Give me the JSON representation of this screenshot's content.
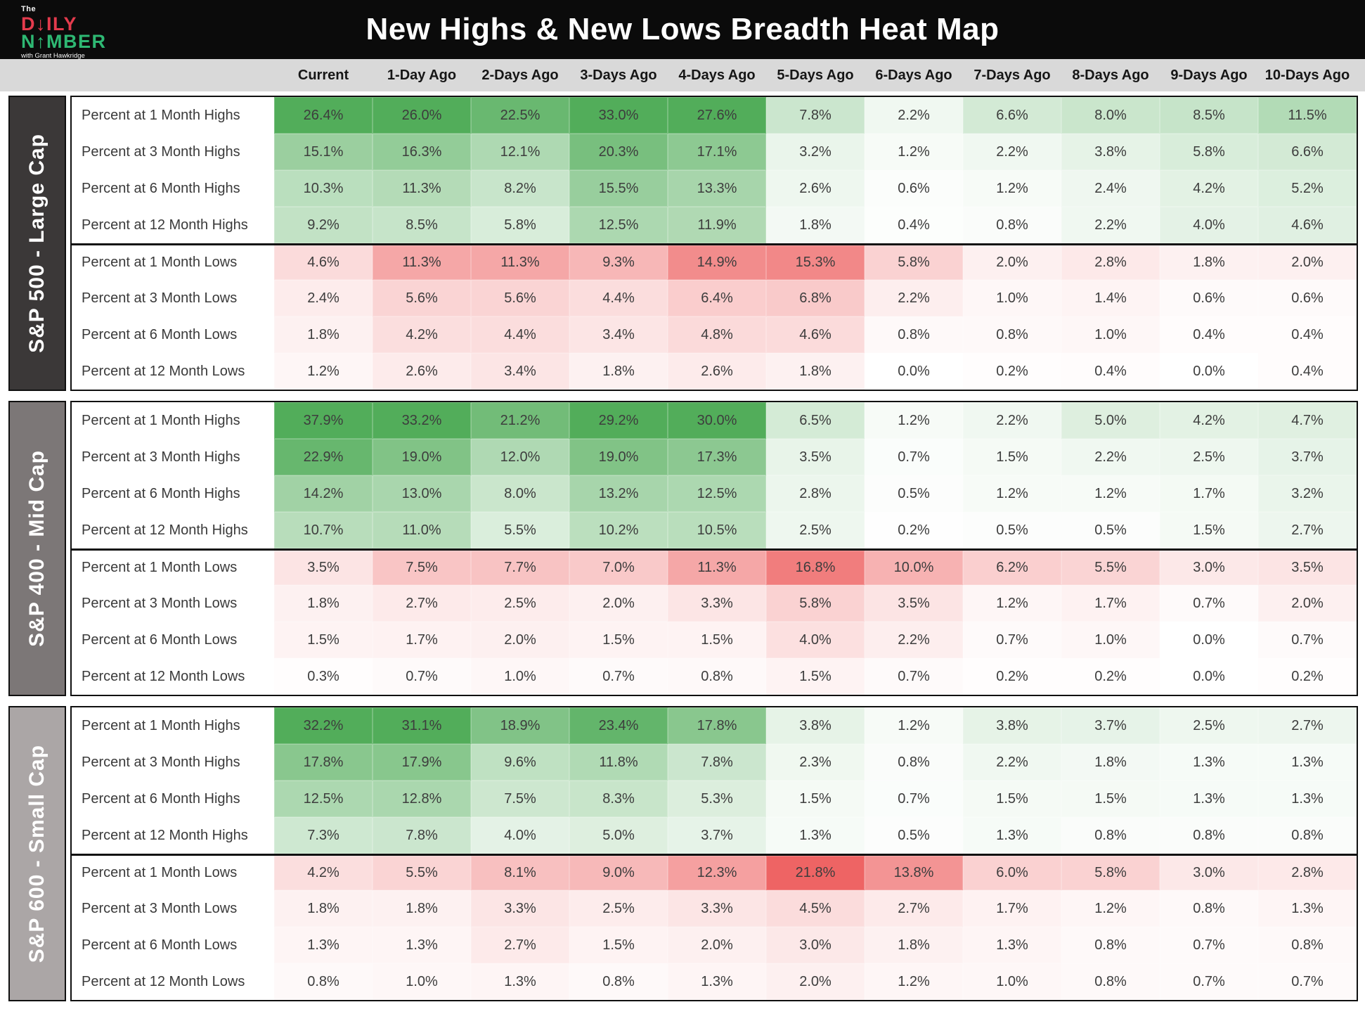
{
  "header": {
    "logo": {
      "line1": "The",
      "brand_top": "DAILY",
      "brand_bottom": "NUMBER",
      "tagline": "with Grant Hawkridge",
      "brand_top_color": "#e43b4d",
      "brand_bottom_color": "#2eb873"
    },
    "title": "New Highs & New Lows Breadth Heat Map"
  },
  "colors": {
    "header_bg": "#0b0b0b",
    "column_band_bg": "#d9d9d9",
    "high_max": "#52ad5a",
    "low_max": "#ee6464",
    "neutral": "#ffffff",
    "sidebar_sp500": "#3b3838",
    "sidebar_sp400": "#7c7777",
    "sidebar_sp600": "#aba6a6"
  },
  "chart_data": {
    "type": "heatmap",
    "title": "New Highs & New Lows Breadth Heat Map",
    "legend_position": "none",
    "grid": false,
    "value_format": "percent_one_decimal",
    "color_scale": {
      "highs": {
        "min": 0,
        "max": 26,
        "from": "#ffffff",
        "to": "#52ad5a"
      },
      "lows": {
        "min": 0,
        "max": 20,
        "from": "#ffffff",
        "to": "#ee6464"
      }
    },
    "columns": [
      "Current",
      "1-Day Ago",
      "2-Days Ago",
      "3-Days Ago",
      "4-Days Ago",
      "5-Days Ago",
      "6-Days Ago",
      "7-Days Ago",
      "8-Days Ago",
      "9-Days Ago",
      "10-Days Ago"
    ],
    "sections": [
      {
        "name": "S&P 500 - Large Cap",
        "sidebar_color": "#3b3838",
        "rows": [
          {
            "label": "Percent at 1 Month Highs",
            "kind": "high",
            "values": [
              26.4,
              26.0,
              22.5,
              33.0,
              27.6,
              7.8,
              2.2,
              6.6,
              8.0,
              8.5,
              11.5
            ]
          },
          {
            "label": "Percent at 3 Month Highs",
            "kind": "high",
            "values": [
              15.1,
              16.3,
              12.1,
              20.3,
              17.1,
              3.2,
              1.2,
              2.2,
              3.8,
              5.8,
              6.6
            ]
          },
          {
            "label": "Percent at 6 Month Highs",
            "kind": "high",
            "values": [
              10.3,
              11.3,
              8.2,
              15.5,
              13.3,
              2.6,
              0.6,
              1.2,
              2.4,
              4.2,
              5.2
            ]
          },
          {
            "label": "Percent at 12 Month Highs",
            "kind": "high",
            "values": [
              9.2,
              8.5,
              5.8,
              12.5,
              11.9,
              1.8,
              0.4,
              0.8,
              2.2,
              4.0,
              4.6
            ]
          },
          {
            "label": "Percent at 1 Month Lows",
            "kind": "low",
            "values": [
              4.6,
              11.3,
              11.3,
              9.3,
              14.9,
              15.3,
              5.8,
              2.0,
              2.8,
              1.8,
              2.0
            ]
          },
          {
            "label": "Percent at 3 Month Lows",
            "kind": "low",
            "values": [
              2.4,
              5.6,
              5.6,
              4.4,
              6.4,
              6.8,
              2.2,
              1.0,
              1.4,
              0.6,
              0.6
            ]
          },
          {
            "label": "Percent at 6 Month Lows",
            "kind": "low",
            "values": [
              1.8,
              4.2,
              4.4,
              3.4,
              4.8,
              4.6,
              0.8,
              0.8,
              1.0,
              0.4,
              0.4
            ]
          },
          {
            "label": "Percent at 12 Month Lows",
            "kind": "low",
            "values": [
              1.2,
              2.6,
              3.4,
              1.8,
              2.6,
              1.8,
              0.0,
              0.2,
              0.4,
              0.0,
              0.4
            ]
          }
        ]
      },
      {
        "name": "S&P 400 - Mid Cap",
        "sidebar_color": "#7c7777",
        "rows": [
          {
            "label": "Percent at 1 Month Highs",
            "kind": "high",
            "values": [
              37.9,
              33.2,
              21.2,
              29.2,
              30.0,
              6.5,
              1.2,
              2.2,
              5.0,
              4.2,
              4.7
            ]
          },
          {
            "label": "Percent at 3 Month Highs",
            "kind": "high",
            "values": [
              22.9,
              19.0,
              12.0,
              19.0,
              17.3,
              3.5,
              0.7,
              1.5,
              2.2,
              2.5,
              3.7
            ]
          },
          {
            "label": "Percent at 6 Month Highs",
            "kind": "high",
            "values": [
              14.2,
              13.0,
              8.0,
              13.2,
              12.5,
              2.8,
              0.5,
              1.2,
              1.2,
              1.7,
              3.2
            ]
          },
          {
            "label": "Percent at 12 Month Highs",
            "kind": "high",
            "values": [
              10.7,
              11.0,
              5.5,
              10.2,
              10.5,
              2.5,
              0.2,
              0.5,
              0.5,
              1.5,
              2.7
            ]
          },
          {
            "label": "Percent at 1 Month Lows",
            "kind": "low",
            "values": [
              3.5,
              7.5,
              7.7,
              7.0,
              11.3,
              16.8,
              10.0,
              6.2,
              5.5,
              3.0,
              3.5
            ]
          },
          {
            "label": "Percent at 3 Month Lows",
            "kind": "low",
            "values": [
              1.8,
              2.7,
              2.5,
              2.0,
              3.3,
              5.8,
              3.5,
              1.2,
              1.7,
              0.7,
              2.0
            ]
          },
          {
            "label": "Percent at 6 Month Lows",
            "kind": "low",
            "values": [
              1.5,
              1.7,
              2.0,
              1.5,
              1.5,
              4.0,
              2.2,
              0.7,
              1.0,
              0.0,
              0.7
            ]
          },
          {
            "label": "Percent at 12 Month Lows",
            "kind": "low",
            "values": [
              0.3,
              0.7,
              1.0,
              0.7,
              0.8,
              1.5,
              0.7,
              0.2,
              0.2,
              0.0,
              0.2
            ]
          }
        ]
      },
      {
        "name": "S&P 600 - Small Cap",
        "sidebar_color": "#aba6a6",
        "rows": [
          {
            "label": "Percent at 1 Month Highs",
            "kind": "high",
            "values": [
              32.2,
              31.1,
              18.9,
              23.4,
              17.8,
              3.8,
              1.2,
              3.8,
              3.7,
              2.5,
              2.7
            ]
          },
          {
            "label": "Percent at 3 Month Highs",
            "kind": "high",
            "values": [
              17.8,
              17.9,
              9.6,
              11.8,
              7.8,
              2.3,
              0.8,
              2.2,
              1.8,
              1.3,
              1.3
            ]
          },
          {
            "label": "Percent at 6 Month Highs",
            "kind": "high",
            "values": [
              12.5,
              12.8,
              7.5,
              8.3,
              5.3,
              1.5,
              0.7,
              1.5,
              1.5,
              1.3,
              1.3
            ]
          },
          {
            "label": "Percent at 12 Month Highs",
            "kind": "high",
            "values": [
              7.3,
              7.8,
              4.0,
              5.0,
              3.7,
              1.3,
              0.5,
              1.3,
              0.8,
              0.8,
              0.8
            ]
          },
          {
            "label": "Percent at 1 Month Lows",
            "kind": "low",
            "values": [
              4.2,
              5.5,
              8.1,
              9.0,
              12.3,
              21.8,
              13.8,
              6.0,
              5.8,
              3.0,
              2.8
            ]
          },
          {
            "label": "Percent at 3 Month Lows",
            "kind": "low",
            "values": [
              1.8,
              1.8,
              3.3,
              2.5,
              3.3,
              4.5,
              2.7,
              1.7,
              1.2,
              0.8,
              1.3
            ]
          },
          {
            "label": "Percent at 6 Month Lows",
            "kind": "low",
            "values": [
              1.3,
              1.3,
              2.7,
              1.5,
              2.0,
              3.0,
              1.8,
              1.3,
              0.8,
              0.7,
              0.8
            ]
          },
          {
            "label": "Percent at 12 Month Lows",
            "kind": "low",
            "values": [
              0.8,
              1.0,
              1.3,
              0.8,
              1.3,
              2.0,
              1.2,
              1.0,
              0.8,
              0.7,
              0.7
            ]
          }
        ]
      }
    ]
  }
}
